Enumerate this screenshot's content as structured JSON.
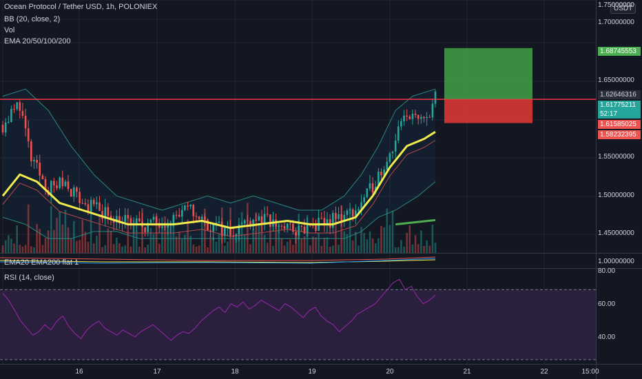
{
  "header": {
    "symbol_title": "Ocean Protocol / Tether USD, 1h, POLONIEX",
    "indicators": [
      "BB (20, close, 2)",
      "Vol",
      "EMA 20/50/100/200"
    ]
  },
  "currency_button": "USDT",
  "panes": {
    "ema_pane_label": "EMA20 EMA200 flat 1",
    "rsi_pane_label": "RSI (14, close)"
  },
  "price_axis": {
    "ticks": [
      "1.75000000",
      "1.70000000",
      "1.65000000",
      "1.55000000",
      "1.50000000",
      "1.45000000",
      "1.00000000"
    ],
    "tags": [
      {
        "text": "1.68745553",
        "bg": "#4caf50",
        "color": "#ffffff"
      },
      {
        "text": "1.62646316",
        "bg": "#2a2e39",
        "color": "#d1d4dc"
      },
      {
        "text": "1.61775211",
        "bg": "#26a69a",
        "color": "#ffffff"
      },
      {
        "text": "52:17",
        "bg": "#26a69a",
        "color": "#ffffff"
      },
      {
        "text": "1.61585025",
        "bg": "#ef5350",
        "color": "#ffffff"
      },
      {
        "text": "1.58232395",
        "bg": "#ef5350",
        "color": "#ffffff"
      }
    ]
  },
  "rsi_axis": {
    "ticks": [
      "80.00",
      "60.00",
      "40.00"
    ]
  },
  "time_axis": {
    "ticks": [
      "16",
      "17",
      "18",
      "19",
      "20",
      "21",
      "22",
      "15:00"
    ]
  },
  "colors": {
    "background": "#131722",
    "grid": "#1f2430",
    "up": "#26a69a",
    "down": "#ef5350",
    "ema20": "#f3ec4e",
    "ema200": "#4caf50",
    "bb": "#2a8a80",
    "resistance": "#f23645",
    "target_zone": "#43a047",
    "stop_zone": "#e53935",
    "rsi_line": "#9c27b0",
    "rsi_band": "#2a1f3d"
  },
  "chart_data": {
    "type": "candlestick",
    "xlabel": "",
    "ylabel": "",
    "ylim": [
      1.4,
      1.755
    ],
    "resistance_level": 1.6156,
    "long_position": {
      "target": 1.68745553,
      "entry": 1.61585025,
      "stop": 1.58232395
    },
    "price_markers": [
      1.68745553,
      1.62646316,
      1.61775211,
      1.61585025,
      1.58232395
    ],
    "price_path": [
      [
        0,
        1.58
      ],
      [
        6,
        1.61
      ],
      [
        10,
        1.53
      ],
      [
        16,
        1.49
      ],
      [
        22,
        1.5
      ],
      [
        28,
        1.47
      ],
      [
        34,
        1.46
      ],
      [
        40,
        1.45
      ],
      [
        46,
        1.44
      ],
      [
        52,
        1.44
      ],
      [
        60,
        1.45
      ],
      [
        66,
        1.46
      ],
      [
        72,
        1.44
      ],
      [
        80,
        1.43
      ],
      [
        88,
        1.45
      ],
      [
        96,
        1.44
      ],
      [
        104,
        1.43
      ],
      [
        112,
        1.44
      ],
      [
        118,
        1.45
      ],
      [
        124,
        1.46
      ],
      [
        128,
        1.48
      ],
      [
        132,
        1.51
      ],
      [
        136,
        1.54
      ],
      [
        140,
        1.58
      ],
      [
        144,
        1.6
      ],
      [
        146,
        1.58
      ],
      [
        149,
        1.59
      ],
      [
        152,
        1.62
      ]
    ],
    "ema20_path": [
      [
        0,
        1.48
      ],
      [
        6,
        1.51
      ],
      [
        12,
        1.5
      ],
      [
        20,
        1.47
      ],
      [
        28,
        1.46
      ],
      [
        36,
        1.45
      ],
      [
        44,
        1.44
      ],
      [
        52,
        1.44
      ],
      [
        60,
        1.44
      ],
      [
        70,
        1.445
      ],
      [
        80,
        1.435
      ],
      [
        90,
        1.44
      ],
      [
        100,
        1.445
      ],
      [
        108,
        1.44
      ],
      [
        116,
        1.44
      ],
      [
        124,
        1.45
      ],
      [
        130,
        1.48
      ],
      [
        136,
        1.52
      ],
      [
        142,
        1.55
      ],
      [
        148,
        1.56
      ],
      [
        152,
        1.57
      ]
    ],
    "ema200_path": [
      [
        138,
        1.44
      ],
      [
        152,
        1.446
      ]
    ],
    "bb_upper_path": [
      [
        0,
        1.62
      ],
      [
        8,
        1.63
      ],
      [
        16,
        1.6
      ],
      [
        24,
        1.55
      ],
      [
        32,
        1.51
      ],
      [
        40,
        1.48
      ],
      [
        48,
        1.47
      ],
      [
        56,
        1.46
      ],
      [
        64,
        1.47
      ],
      [
        72,
        1.48
      ],
      [
        80,
        1.47
      ],
      [
        88,
        1.48
      ],
      [
        96,
        1.47
      ],
      [
        104,
        1.46
      ],
      [
        112,
        1.46
      ],
      [
        120,
        1.48
      ],
      [
        126,
        1.51
      ],
      [
        132,
        1.55
      ],
      [
        138,
        1.6
      ],
      [
        144,
        1.62
      ],
      [
        152,
        1.63
      ]
    ],
    "bb_lower_path": [
      [
        0,
        1.45
      ],
      [
        8,
        1.44
      ],
      [
        16,
        1.42
      ],
      [
        24,
        1.42
      ],
      [
        32,
        1.43
      ],
      [
        40,
        1.43
      ],
      [
        48,
        1.42
      ],
      [
        56,
        1.42
      ],
      [
        64,
        1.42
      ],
      [
        72,
        1.42
      ],
      [
        80,
        1.42
      ],
      [
        88,
        1.42
      ],
      [
        96,
        1.42
      ],
      [
        104,
        1.42
      ],
      [
        112,
        1.42
      ],
      [
        120,
        1.42
      ],
      [
        126,
        1.43
      ],
      [
        132,
        1.45
      ],
      [
        138,
        1.46
      ],
      [
        146,
        1.48
      ],
      [
        152,
        1.5
      ]
    ],
    "rsi": {
      "ylim": [
        28,
        82
      ],
      "bands": [
        70,
        30
      ],
      "values": [
        68,
        64,
        58,
        52,
        48,
        44,
        46,
        50,
        47,
        52,
        55,
        49,
        45,
        42,
        47,
        50,
        52,
        48,
        46,
        44,
        47,
        45,
        43,
        46,
        48,
        50,
        47,
        44,
        41,
        44,
        46,
        45,
        48,
        52,
        55,
        58,
        60,
        57,
        62,
        60,
        63,
        59,
        61,
        64,
        62,
        60,
        58,
        62,
        60,
        57,
        54,
        58,
        60,
        55,
        52,
        50,
        46,
        49,
        52,
        56,
        58,
        60,
        62,
        66,
        70,
        74,
        76,
        70,
        72,
        66,
        62,
        64,
        67
      ]
    }
  }
}
